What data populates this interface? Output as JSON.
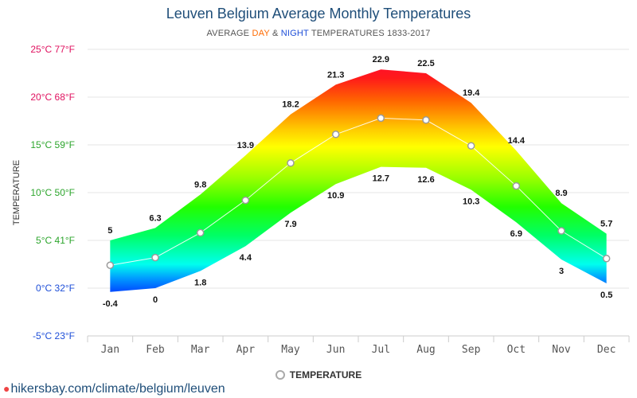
{
  "chart_data": {
    "type": "area",
    "title": "Leuven Belgium Average Monthly Temperatures",
    "subtitle_parts": {
      "before": "AVERAGE ",
      "day": "DAY",
      "middle": " & ",
      "night": "NIGHT",
      "after": " TEMPERATURES 1833-2017"
    },
    "categories": [
      "Jan",
      "Feb",
      "Mar",
      "Apr",
      "May",
      "Jun",
      "Jul",
      "Aug",
      "Sep",
      "Oct",
      "Nov",
      "Dec"
    ],
    "series": [
      {
        "name": "DAY",
        "values": [
          5,
          6.3,
          9.8,
          13.9,
          18.2,
          21.3,
          22.9,
          22.5,
          19.4,
          14.4,
          8.9,
          5.7
        ]
      },
      {
        "name": "NIGHT",
        "values": [
          -0.4,
          0,
          1.8,
          4.4,
          7.9,
          10.9,
          12.7,
          12.6,
          10.3,
          6.9,
          3,
          0.5
        ]
      },
      {
        "name": "TEMPERATURE",
        "values": [
          2.4,
          3.2,
          5.8,
          9.2,
          13.1,
          16.1,
          17.8,
          17.6,
          14.9,
          10.7,
          6.0,
          3.1
        ]
      }
    ],
    "ylabel": "TEMPERATURE",
    "ylim": [
      -5,
      25
    ],
    "y_ticks": [
      {
        "value": 25,
        "label": "25°C 77°F",
        "color": "#e0115f"
      },
      {
        "value": 20,
        "label": "20°C 68°F",
        "color": "#e0115f"
      },
      {
        "value": 15,
        "label": "15°C 59°F",
        "color": "#2ca52c"
      },
      {
        "value": 10,
        "label": "10°C 50°F",
        "color": "#2ca52c"
      },
      {
        "value": 5,
        "label": "5°C 41°F",
        "color": "#2ca52c"
      },
      {
        "value": 0,
        "label": "0°C 32°F",
        "color": "#1d4ed8"
      },
      {
        "value": -5,
        "label": "-5°C 23°F",
        "color": "#1d4ed8"
      }
    ],
    "legend": {
      "label": "TEMPERATURE",
      "position": "bottom"
    },
    "grid": true
  },
  "source": "hikersbay.com/climate/belgium/leuven"
}
